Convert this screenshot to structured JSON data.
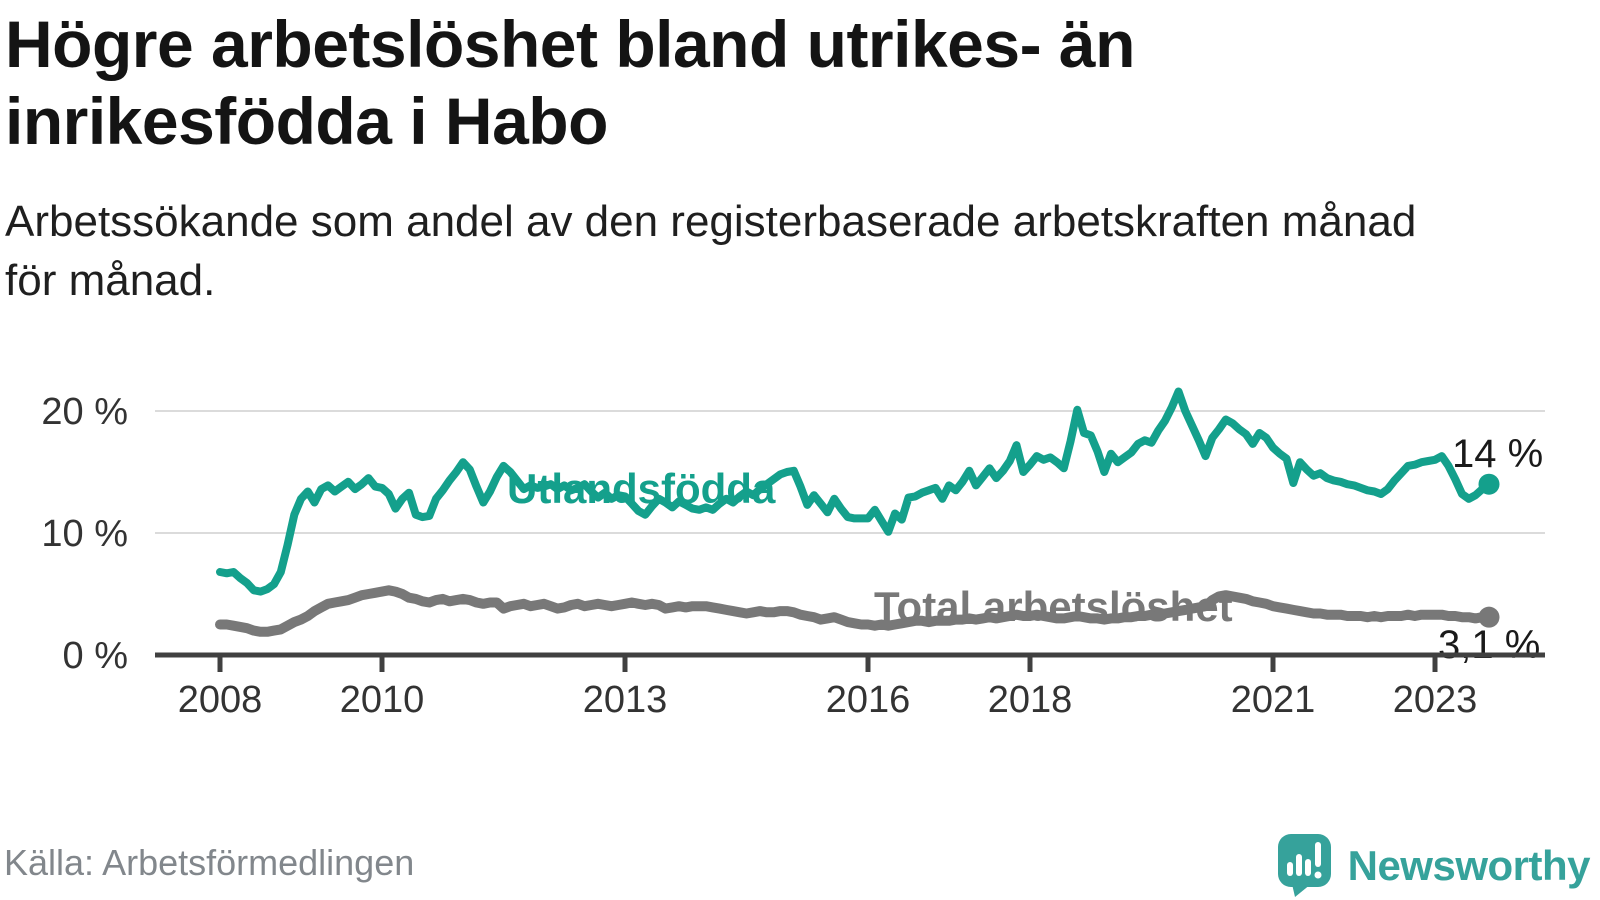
{
  "header": {
    "title_lines": [
      "Högre arbetslöshet bland utrikes- än",
      "inrikesfödda i Habo"
    ],
    "subtitle_lines": [
      "Arbetssökande som andel av den registerbaserade arbetskraften månad",
      "för månad."
    ]
  },
  "chart_data": {
    "type": "line",
    "title": "Högre arbetslöshet bland utrikes- än inrikesfödda i Habo",
    "subtitle": "Arbetssökande som andel av den registerbaserade arbetskraften månad för månad.",
    "interval": "monthly",
    "x_start": 2008.0,
    "x_end": 2023.67,
    "grid": "horizontal-only",
    "legend_position": "inline-labels",
    "colors": {
      "grid": "#dbdbdb",
      "axis": "#404040",
      "tick_text": "#333333",
      "annotation_text": "#1a1a1a"
    },
    "y_axis": {
      "unit": "%",
      "range": [
        0,
        22
      ],
      "ticks": [
        {
          "value": 0,
          "label": "0 %"
        },
        {
          "value": 10,
          "label": "10 %"
        },
        {
          "value": 20,
          "label": "20 %"
        }
      ]
    },
    "x_axis": {
      "ticks": [
        {
          "year": 2008,
          "label": "2008"
        },
        {
          "year": 2010,
          "label": "2010"
        },
        {
          "year": 2013,
          "label": "2013"
        },
        {
          "year": 2016,
          "label": "2016"
        },
        {
          "year": 2018,
          "label": "2018"
        },
        {
          "year": 2021,
          "label": "2021"
        },
        {
          "year": 2023,
          "label": "2023"
        }
      ]
    },
    "series": [
      {
        "id": "utlandsfodda",
        "label": "Utlandsfödda",
        "color": "#14A08C",
        "end_label": "14 %",
        "end_value": 14.0,
        "values": [
          6.8,
          6.7,
          6.8,
          6.3,
          5.9,
          5.3,
          5.2,
          5.4,
          5.8,
          6.8,
          9.0,
          11.5,
          12.8,
          13.4,
          12.5,
          13.6,
          13.9,
          13.4,
          13.8,
          14.2,
          13.6,
          14.0,
          14.5,
          13.8,
          13.7,
          13.2,
          12.0,
          12.8,
          13.3,
          11.5,
          11.3,
          11.4,
          12.8,
          13.5,
          14.3,
          15.0,
          15.8,
          15.2,
          13.8,
          12.5,
          13.4,
          14.6,
          15.5,
          15.0,
          14.3,
          13.6,
          13.9,
          13.7,
          13.8,
          14.0,
          13.6,
          13.9,
          13.5,
          13.7,
          14.0,
          13.4,
          12.9,
          13.3,
          12.8,
          13.1,
          13.0,
          12.4,
          11.8,
          11.5,
          12.2,
          12.8,
          12.5,
          12.1,
          12.6,
          12.3,
          12.0,
          11.9,
          12.1,
          11.9,
          12.4,
          12.8,
          12.5,
          13.0,
          13.4,
          13.1,
          13.6,
          14.0,
          14.4,
          14.8,
          15.0,
          15.1,
          13.8,
          12.3,
          13.1,
          12.4,
          11.7,
          12.8,
          12.0,
          11.3,
          11.2,
          11.2,
          11.2,
          11.9,
          11.0,
          10.1,
          11.6,
          11.1,
          12.9,
          13.0,
          13.3,
          13.5,
          13.7,
          12.8,
          13.9,
          13.5,
          14.2,
          15.1,
          13.9,
          14.6,
          15.3,
          14.5,
          15.1,
          15.9,
          17.2,
          15.0,
          15.6,
          16.3,
          16.0,
          16.2,
          15.8,
          15.3,
          17.5,
          20.1,
          18.2,
          18.0,
          16.7,
          15.0,
          16.5,
          15.8,
          16.2,
          16.6,
          17.3,
          17.6,
          17.4,
          18.4,
          19.2,
          20.3,
          21.6,
          20.0,
          18.8,
          17.6,
          16.3,
          17.8,
          18.5,
          19.3,
          19.0,
          18.5,
          18.1,
          17.3,
          18.2,
          17.8,
          17.0,
          16.5,
          16.1,
          14.1,
          15.8,
          15.2,
          14.7,
          14.9,
          14.5,
          14.3,
          14.2,
          14.0,
          13.9,
          13.7,
          13.5,
          13.4,
          13.2,
          13.6,
          14.3,
          14.9,
          15.5,
          15.6,
          15.8,
          15.9,
          16.0,
          16.3,
          15.5,
          14.4,
          13.2,
          12.8,
          13.1,
          13.6,
          14.0
        ]
      },
      {
        "id": "total",
        "label": "Total arbetslöshet",
        "color": "#787878",
        "end_label": "3,1 %",
        "end_value": 3.1,
        "values": [
          2.5,
          2.5,
          2.4,
          2.3,
          2.2,
          2.0,
          1.9,
          1.9,
          2.0,
          2.1,
          2.4,
          2.7,
          2.9,
          3.2,
          3.6,
          3.9,
          4.2,
          4.3,
          4.4,
          4.5,
          4.7,
          4.9,
          5.0,
          5.1,
          5.2,
          5.3,
          5.2,
          5.0,
          4.7,
          4.6,
          4.4,
          4.3,
          4.5,
          4.6,
          4.4,
          4.5,
          4.6,
          4.5,
          4.3,
          4.2,
          4.3,
          4.3,
          3.8,
          4.0,
          4.1,
          4.2,
          4.0,
          4.1,
          4.2,
          4.0,
          3.8,
          3.9,
          4.1,
          4.2,
          4.0,
          4.1,
          4.2,
          4.1,
          4.0,
          4.1,
          4.2,
          4.3,
          4.2,
          4.1,
          4.2,
          4.1,
          3.8,
          3.9,
          4.0,
          3.9,
          4.0,
          4.0,
          4.0,
          3.9,
          3.8,
          3.7,
          3.6,
          3.5,
          3.4,
          3.5,
          3.6,
          3.5,
          3.5,
          3.6,
          3.6,
          3.5,
          3.3,
          3.2,
          3.1,
          2.9,
          3.0,
          3.1,
          2.9,
          2.7,
          2.6,
          2.5,
          2.5,
          2.4,
          2.5,
          2.4,
          2.5,
          2.6,
          2.7,
          2.8,
          2.8,
          2.7,
          2.8,
          2.8,
          2.8,
          2.9,
          2.9,
          3.0,
          2.9,
          3.0,
          3.1,
          3.0,
          3.1,
          3.2,
          3.3,
          3.2,
          3.2,
          3.3,
          3.2,
          3.1,
          3.0,
          3.0,
          3.1,
          3.2,
          3.1,
          3.0,
          3.0,
          2.9,
          3.0,
          3.0,
          3.1,
          3.1,
          3.2,
          3.2,
          3.3,
          3.3,
          3.4,
          3.5,
          3.6,
          3.7,
          3.8,
          3.9,
          4.0,
          4.5,
          4.8,
          4.9,
          4.8,
          4.7,
          4.6,
          4.4,
          4.3,
          4.2,
          4.0,
          3.9,
          3.8,
          3.7,
          3.6,
          3.5,
          3.4,
          3.4,
          3.3,
          3.3,
          3.3,
          3.2,
          3.2,
          3.2,
          3.1,
          3.2,
          3.1,
          3.2,
          3.2,
          3.2,
          3.3,
          3.2,
          3.3,
          3.3,
          3.3,
          3.3,
          3.2,
          3.2,
          3.1,
          3.1,
          3.0,
          3.1,
          3.1
        ]
      }
    ]
  },
  "footer": {
    "source": "Källa: Arbetsförmedlingen",
    "brand": "Newsworthy"
  }
}
